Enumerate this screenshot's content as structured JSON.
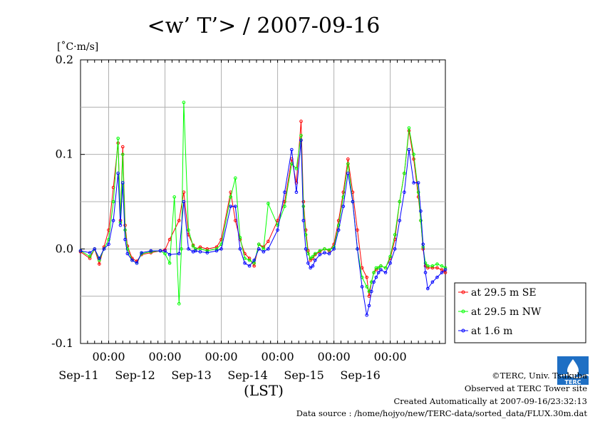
{
  "chart_data": {
    "type": "line",
    "title": "<w’ T’> / 2007-09-16",
    "ylabel": "[˚C·m/s]",
    "xlabel": "(LST)",
    "ylim": [
      -0.1,
      0.2
    ],
    "yticks": [
      "0.2",
      "0.1",
      "0.0",
      "-0.1"
    ],
    "xlim": [
      "2007-09-10T12:00",
      "2007-09-16T23:30"
    ],
    "xticks": [
      {
        "time": "00:00",
        "date": "Sep-11"
      },
      {
        "time": "00:00",
        "date": "Sep-12"
      },
      {
        "time": "00:00",
        "date": "Sep-13"
      },
      {
        "time": "00:00",
        "date": "Sep-14"
      },
      {
        "time": "00:00",
        "date": "Sep-15"
      },
      {
        "time": "00:00",
        "date": "Sep-16"
      }
    ],
    "grid": true,
    "legend_position": "right",
    "series": [
      {
        "name": "at 29.5 m SE",
        "color": "#ff0000",
        "x": [
          "2007-09-10T12:00",
          "2007-09-10T16:00",
          "2007-09-10T18:00",
          "2007-09-10T20:00",
          "2007-09-10T22:00",
          "2007-09-11T00:00",
          "2007-09-11T02:00",
          "2007-09-11T04:00",
          "2007-09-11T05:00",
          "2007-09-11T06:00",
          "2007-09-11T07:00",
          "2007-09-11T08:00",
          "2007-09-11T10:00",
          "2007-09-11T12:00",
          "2007-09-11T14:00",
          "2007-09-11T18:00",
          "2007-09-11T22:00",
          "2007-09-12T00:00",
          "2007-09-12T02:00",
          "2007-09-12T06:00",
          "2007-09-12T08:00",
          "2007-09-12T10:00",
          "2007-09-12T12:00",
          "2007-09-12T13:00",
          "2007-09-12T15:00",
          "2007-09-12T18:00",
          "2007-09-12T22:00",
          "2007-09-13T00:00",
          "2007-09-13T04:00",
          "2007-09-13T06:00",
          "2007-09-13T08:00",
          "2007-09-13T10:00",
          "2007-09-13T12:00",
          "2007-09-13T14:00",
          "2007-09-13T16:00",
          "2007-09-13T18:00",
          "2007-09-13T20:00",
          "2007-09-14T00:00",
          "2007-09-14T03:00",
          "2007-09-14T06:00",
          "2007-09-14T08:00",
          "2007-09-14T10:00",
          "2007-09-14T11:00",
          "2007-09-14T12:00",
          "2007-09-14T13:00",
          "2007-09-14T14:00",
          "2007-09-14T15:00",
          "2007-09-14T16:00",
          "2007-09-14T18:00",
          "2007-09-14T20:00",
          "2007-09-14T22:00",
          "2007-09-15T00:00",
          "2007-09-15T02:00",
          "2007-09-15T04:00",
          "2007-09-15T06:00",
          "2007-09-15T08:00",
          "2007-09-15T10:00",
          "2007-09-15T12:00",
          "2007-09-15T14:00",
          "2007-09-15T15:00",
          "2007-09-15T16:00",
          "2007-09-15T17:00",
          "2007-09-15T18:00",
          "2007-09-15T19:00",
          "2007-09-15T20:00",
          "2007-09-15T22:00",
          "2007-09-16T00:00",
          "2007-09-16T02:00",
          "2007-09-16T04:00",
          "2007-09-16T06:00",
          "2007-09-16T08:00",
          "2007-09-16T10:00",
          "2007-09-16T12:00",
          "2007-09-16T13:00",
          "2007-09-16T14:00",
          "2007-09-16T15:00",
          "2007-09-16T16:00",
          "2007-09-16T18:00",
          "2007-09-16T20:00",
          "2007-09-16T22:00",
          "2007-09-16T23:30"
        ],
        "y": [
          -0.003,
          -0.01,
          0.0,
          -0.016,
          0.002,
          0.02,
          0.065,
          0.112,
          0.03,
          0.108,
          0.025,
          0.003,
          -0.01,
          -0.013,
          -0.006,
          -0.004,
          -0.002,
          -0.001,
          0.01,
          0.03,
          0.06,
          0.015,
          0.004,
          0.0,
          0.002,
          0.0,
          0.002,
          0.01,
          0.06,
          0.03,
          0.01,
          -0.005,
          -0.01,
          -0.018,
          0.005,
          0.002,
          0.008,
          0.03,
          0.05,
          0.095,
          0.07,
          0.135,
          0.05,
          0.02,
          -0.002,
          -0.012,
          -0.01,
          -0.006,
          -0.003,
          0.0,
          -0.002,
          0.005,
          0.03,
          0.06,
          0.095,
          0.06,
          0.02,
          -0.02,
          -0.03,
          -0.05,
          -0.035,
          -0.025,
          -0.022,
          -0.02,
          -0.018,
          -0.02,
          -0.01,
          0.01,
          0.05,
          0.08,
          0.125,
          0.095,
          0.055,
          0.03,
          0.0,
          -0.018,
          -0.02,
          -0.02,
          -0.02,
          -0.022,
          -0.025
        ]
      },
      {
        "name": "at 29.5 m NW",
        "color": "#00ff00",
        "x": [
          "2007-09-10T12:00",
          "2007-09-10T16:00",
          "2007-09-10T18:00",
          "2007-09-10T20:00",
          "2007-09-10T22:00",
          "2007-09-11T00:00",
          "2007-09-11T02:00",
          "2007-09-11T04:00",
          "2007-09-11T05:00",
          "2007-09-11T06:00",
          "2007-09-11T07:00",
          "2007-09-11T08:00",
          "2007-09-11T10:00",
          "2007-09-11T12:00",
          "2007-09-11T14:00",
          "2007-09-11T18:00",
          "2007-09-11T22:00",
          "2007-09-12T00:00",
          "2007-09-12T02:00",
          "2007-09-12T04:00",
          "2007-09-12T06:00",
          "2007-09-12T07:00",
          "2007-09-12T08:00",
          "2007-09-12T10:00",
          "2007-09-12T12:00",
          "2007-09-12T13:00",
          "2007-09-12T15:00",
          "2007-09-12T18:00",
          "2007-09-12T22:00",
          "2007-09-13T00:00",
          "2007-09-13T04:00",
          "2007-09-13T06:00",
          "2007-09-13T08:00",
          "2007-09-13T10:00",
          "2007-09-13T12:00",
          "2007-09-13T14:00",
          "2007-09-13T16:00",
          "2007-09-13T18:00",
          "2007-09-13T20:00",
          "2007-09-14T00:00",
          "2007-09-14T03:00",
          "2007-09-14T06:00",
          "2007-09-14T08:00",
          "2007-09-14T10:00",
          "2007-09-14T11:00",
          "2007-09-14T12:00",
          "2007-09-14T13:00",
          "2007-09-14T14:00",
          "2007-09-14T15:00",
          "2007-09-14T16:00",
          "2007-09-14T18:00",
          "2007-09-14T20:00",
          "2007-09-14T22:00",
          "2007-09-15T00:00",
          "2007-09-15T02:00",
          "2007-09-15T04:00",
          "2007-09-15T06:00",
          "2007-09-15T08:00",
          "2007-09-15T10:00",
          "2007-09-15T12:00",
          "2007-09-15T14:00",
          "2007-09-15T15:00",
          "2007-09-15T16:00",
          "2007-09-15T17:00",
          "2007-09-15T18:00",
          "2007-09-15T19:00",
          "2007-09-15T20:00",
          "2007-09-15T22:00",
          "2007-09-16T00:00",
          "2007-09-16T02:00",
          "2007-09-16T04:00",
          "2007-09-16T06:00",
          "2007-09-16T08:00",
          "2007-09-16T10:00",
          "2007-09-16T12:00",
          "2007-09-16T13:00",
          "2007-09-16T14:00",
          "2007-09-16T15:00",
          "2007-09-16T16:00",
          "2007-09-16T18:00",
          "2007-09-16T20:00",
          "2007-09-16T22:00",
          "2007-09-16T23:30"
        ],
        "y": [
          -0.002,
          -0.008,
          0.0,
          -0.012,
          0.0,
          0.01,
          0.05,
          0.117,
          0.028,
          0.1,
          0.02,
          0.0,
          -0.012,
          -0.015,
          -0.005,
          -0.003,
          -0.002,
          -0.005,
          -0.015,
          0.055,
          -0.058,
          0.0,
          0.155,
          0.02,
          0.003,
          0.0,
          0.0,
          -0.002,
          0.0,
          0.005,
          0.055,
          0.075,
          0.012,
          -0.01,
          -0.012,
          -0.015,
          0.005,
          0.0,
          0.048,
          0.025,
          0.045,
          0.09,
          0.085,
          0.12,
          0.045,
          0.015,
          -0.005,
          -0.01,
          -0.008,
          -0.005,
          -0.002,
          0.0,
          -0.001,
          0.002,
          0.025,
          0.055,
          0.09,
          0.05,
          0.0,
          -0.03,
          -0.04,
          -0.045,
          -0.035,
          -0.025,
          -0.02,
          -0.02,
          -0.018,
          -0.02,
          -0.008,
          0.015,
          0.05,
          0.08,
          0.128,
          0.1,
          0.06,
          0.03,
          0.002,
          -0.015,
          -0.018,
          -0.018,
          -0.016,
          -0.018,
          -0.02
        ]
      },
      {
        "name": "at 1.6 m",
        "color": "#0000ff",
        "x": [
          "2007-09-10T12:00",
          "2007-09-10T16:00",
          "2007-09-10T18:00",
          "2007-09-10T20:00",
          "2007-09-10T22:00",
          "2007-09-11T00:00",
          "2007-09-11T02:00",
          "2007-09-11T04:00",
          "2007-09-11T05:00",
          "2007-09-11T06:00",
          "2007-09-11T07:00",
          "2007-09-11T08:00",
          "2007-09-11T10:00",
          "2007-09-11T12:00",
          "2007-09-11T14:00",
          "2007-09-11T18:00",
          "2007-09-11T22:00",
          "2007-09-12T00:00",
          "2007-09-12T02:00",
          "2007-09-12T06:00",
          "2007-09-12T08:00",
          "2007-09-12T10:00",
          "2007-09-12T12:00",
          "2007-09-12T13:00",
          "2007-09-12T15:00",
          "2007-09-12T18:00",
          "2007-09-12T22:00",
          "2007-09-13T00:00",
          "2007-09-13T04:00",
          "2007-09-13T06:00",
          "2007-09-13T08:00",
          "2007-09-13T10:00",
          "2007-09-13T12:00",
          "2007-09-13T14:00",
          "2007-09-13T16:00",
          "2007-09-13T18:00",
          "2007-09-13T20:00",
          "2007-09-14T00:00",
          "2007-09-14T03:00",
          "2007-09-14T06:00",
          "2007-09-14T08:00",
          "2007-09-14T10:00",
          "2007-09-14T11:00",
          "2007-09-14T12:00",
          "2007-09-14T13:00",
          "2007-09-14T14:00",
          "2007-09-14T15:00",
          "2007-09-14T16:00",
          "2007-09-14T18:00",
          "2007-09-14T20:00",
          "2007-09-14T22:00",
          "2007-09-15T00:00",
          "2007-09-15T02:00",
          "2007-09-15T04:00",
          "2007-09-15T06:00",
          "2007-09-15T08:00",
          "2007-09-15T10:00",
          "2007-09-15T12:00",
          "2007-09-15T14:00",
          "2007-09-15T15:00",
          "2007-09-15T16:00",
          "2007-09-15T17:00",
          "2007-09-15T18:00",
          "2007-09-15T19:00",
          "2007-09-15T20:00",
          "2007-09-15T22:00",
          "2007-09-16T00:00",
          "2007-09-16T02:00",
          "2007-09-16T04:00",
          "2007-09-16T06:00",
          "2007-09-16T08:00",
          "2007-09-16T10:00",
          "2007-09-16T12:00",
          "2007-09-16T13:00",
          "2007-09-16T14:00",
          "2007-09-16T15:00",
          "2007-09-16T16:00",
          "2007-09-16T18:00",
          "2007-09-16T20:00",
          "2007-09-16T22:00",
          "2007-09-16T23:30"
        ],
        "y": [
          -0.002,
          -0.004,
          0.0,
          -0.01,
          0.0,
          0.005,
          0.03,
          0.08,
          0.025,
          0.07,
          0.01,
          -0.005,
          -0.012,
          -0.015,
          -0.004,
          -0.002,
          -0.002,
          -0.002,
          -0.006,
          -0.005,
          0.05,
          0.0,
          -0.003,
          -0.002,
          -0.003,
          -0.004,
          -0.002,
          0.0,
          0.045,
          0.045,
          0.0,
          -0.015,
          -0.018,
          -0.012,
          0.0,
          -0.003,
          0.0,
          0.02,
          0.06,
          0.105,
          0.06,
          0.115,
          0.03,
          0.0,
          -0.015,
          -0.02,
          -0.018,
          -0.012,
          -0.006,
          -0.004,
          -0.005,
          0.0,
          0.02,
          0.045,
          0.08,
          0.05,
          0.0,
          -0.04,
          -0.07,
          -0.06,
          -0.045,
          -0.035,
          -0.03,
          -0.025,
          -0.022,
          -0.025,
          -0.015,
          0.0,
          0.03,
          0.06,
          0.105,
          0.07,
          0.07,
          0.04,
          0.005,
          -0.025,
          -0.042,
          -0.035,
          -0.03,
          -0.025,
          -0.022
        ]
      }
    ]
  },
  "footer": {
    "copyright": "©TERC, Univ. Tsukuba",
    "observed": "Observed at TERC Tower site",
    "created": "Created Automatically at 2007-09-16/23:32:13",
    "source": "Data source : /home/hojyo/new/TERC-data/sorted_data/FLUX.30m.dat",
    "logo_text": "TERC"
  }
}
